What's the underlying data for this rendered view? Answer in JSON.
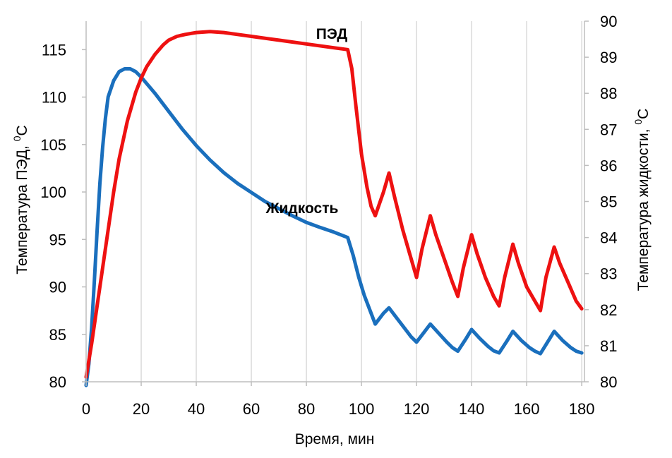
{
  "chart_data": {
    "type": "line",
    "title": "",
    "xlabel": "Время, мин",
    "ylabel_left": "Температура ПЭД, ",
    "ylabel_left_sup": "0",
    "ylabel_left_unit": "C",
    "ylabel_right": "Температура  жидкости, ",
    "ylabel_right_sup": "0",
    "ylabel_right_unit": "C",
    "xlim": [
      0,
      181
    ],
    "ylim_left": [
      80,
      118
    ],
    "ylim_right": [
      80,
      90
    ],
    "x_ticks": [
      0,
      20,
      40,
      60,
      80,
      100,
      120,
      140,
      160,
      180
    ],
    "y_left_ticks": [
      80,
      85,
      90,
      95,
      100,
      105,
      110,
      115
    ],
    "y_right_ticks": [
      80,
      81,
      82,
      83,
      84,
      85,
      86,
      87,
      88,
      89,
      90
    ],
    "grid": "vertical",
    "legend": "none",
    "series": [
      {
        "name": "ПЭД",
        "axis": "left",
        "color": "#ee1111",
        "points": [
          [
            0,
            80.5
          ],
          [
            2,
            84
          ],
          [
            4,
            88
          ],
          [
            6,
            92
          ],
          [
            8,
            96
          ],
          [
            10,
            100
          ],
          [
            12,
            103.5
          ],
          [
            15,
            107.5
          ],
          [
            18,
            110.5
          ],
          [
            20,
            112
          ],
          [
            22,
            113.2
          ],
          [
            25,
            114.5
          ],
          [
            28,
            115.5
          ],
          [
            30,
            116
          ],
          [
            33,
            116.4
          ],
          [
            36,
            116.6
          ],
          [
            40,
            116.8
          ],
          [
            45,
            116.9
          ],
          [
            50,
            116.8
          ],
          [
            55,
            116.6
          ],
          [
            60,
            116.4
          ],
          [
            70,
            116
          ],
          [
            80,
            115.6
          ],
          [
            90,
            115.2
          ],
          [
            95,
            115
          ],
          [
            96.5,
            113
          ],
          [
            98,
            109
          ],
          [
            100,
            104
          ],
          [
            102,
            100.5
          ],
          [
            103.5,
            98.5
          ],
          [
            105,
            97.5
          ],
          [
            108,
            100
          ],
          [
            110,
            102
          ],
          [
            112,
            99.5
          ],
          [
            115,
            96
          ],
          [
            118,
            93
          ],
          [
            120,
            91
          ],
          [
            122,
            94
          ],
          [
            125,
            97.5
          ],
          [
            127,
            95.5
          ],
          [
            130,
            93
          ],
          [
            133,
            90.5
          ],
          [
            135,
            89
          ],
          [
            137,
            92
          ],
          [
            140,
            95.5
          ],
          [
            142,
            93.5
          ],
          [
            145,
            91
          ],
          [
            148,
            89
          ],
          [
            150,
            88
          ],
          [
            152,
            91
          ],
          [
            155,
            94.5
          ],
          [
            157,
            92.5
          ],
          [
            160,
            90
          ],
          [
            163,
            88.5
          ],
          [
            165,
            87.5
          ],
          [
            167,
            91
          ],
          [
            170,
            94.2
          ],
          [
            172,
            92.5
          ],
          [
            175,
            90.5
          ],
          [
            178,
            88.5
          ],
          [
            180,
            87.7
          ]
        ]
      },
      {
        "name": "Жидкость",
        "axis": "right",
        "color": "#1a6fbd",
        "points": [
          [
            0,
            79.9
          ],
          [
            1,
            80.5
          ],
          [
            2,
            81.5
          ],
          [
            3,
            82.8
          ],
          [
            4,
            84.2
          ],
          [
            5,
            85.5
          ],
          [
            6,
            86.5
          ],
          [
            7,
            87.3
          ],
          [
            8,
            87.9
          ],
          [
            10,
            88.35
          ],
          [
            12,
            88.6
          ],
          [
            14,
            88.68
          ],
          [
            16,
            88.68
          ],
          [
            18,
            88.6
          ],
          [
            20,
            88.45
          ],
          [
            25,
            88.0
          ],
          [
            30,
            87.5
          ],
          [
            35,
            87.0
          ],
          [
            40,
            86.55
          ],
          [
            45,
            86.15
          ],
          [
            50,
            85.8
          ],
          [
            55,
            85.5
          ],
          [
            60,
            85.25
          ],
          [
            65,
            85.0
          ],
          [
            70,
            84.8
          ],
          [
            75,
            84.6
          ],
          [
            80,
            84.42
          ],
          [
            85,
            84.28
          ],
          [
            90,
            84.15
          ],
          [
            95,
            84.0
          ],
          [
            97,
            83.5
          ],
          [
            99,
            82.9
          ],
          [
            101,
            82.4
          ],
          [
            103,
            82.0
          ],
          [
            105,
            81.6
          ],
          [
            108,
            81.9
          ],
          [
            110,
            82.05
          ],
          [
            113,
            81.75
          ],
          [
            116,
            81.45
          ],
          [
            118,
            81.25
          ],
          [
            120,
            81.1
          ],
          [
            123,
            81.4
          ],
          [
            125,
            81.6
          ],
          [
            128,
            81.35
          ],
          [
            131,
            81.1
          ],
          [
            133,
            80.95
          ],
          [
            135,
            80.85
          ],
          [
            138,
            81.2
          ],
          [
            140,
            81.45
          ],
          [
            143,
            81.2
          ],
          [
            146,
            80.98
          ],
          [
            148,
            80.86
          ],
          [
            150,
            80.8
          ],
          [
            153,
            81.15
          ],
          [
            155,
            81.4
          ],
          [
            158,
            81.15
          ],
          [
            161,
            80.95
          ],
          [
            163,
            80.85
          ],
          [
            165,
            80.78
          ],
          [
            168,
            81.15
          ],
          [
            170,
            81.4
          ],
          [
            173,
            81.15
          ],
          [
            176,
            80.95
          ],
          [
            178,
            80.85
          ],
          [
            180,
            80.8
          ]
        ]
      }
    ]
  }
}
